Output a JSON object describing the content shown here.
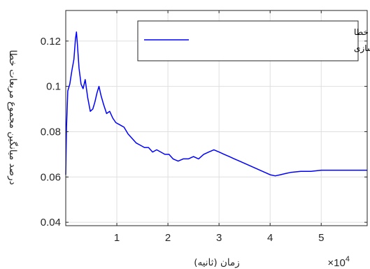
{
  "chart_data": {
    "type": "line",
    "xlabel": "زمان (ثانیه)",
    "ylabel": "درصد میانگین مجموع مربعات خطا",
    "x_multiplier": "×10",
    "x_multiplier_exponent": "4",
    "xlim": [
      0,
      59000
    ],
    "ylim": [
      0.0385,
      0.1335
    ],
    "grid": true,
    "legend_position": "top-right",
    "xticks": [
      {
        "value": 10000,
        "label": "1"
      },
      {
        "value": 20000,
        "label": "2"
      },
      {
        "value": 30000,
        "label": "3"
      },
      {
        "value": 40000,
        "label": "4"
      },
      {
        "value": 50000,
        "label": "5"
      }
    ],
    "yticks": [
      {
        "value": 0.04,
        "label": "0.04"
      },
      {
        "value": 0.06,
        "label": "0.06"
      },
      {
        "value": 0.08,
        "label": "0.08"
      },
      {
        "value": 0.1,
        "label": "0.1"
      },
      {
        "value": 0.12,
        "label": "0.12"
      }
    ],
    "series": [
      {
        "name": "درصد میانگین مربعات مجموع خطا برای مدلسازی",
        "name_lines": [
          "درصد میانگین مربعات مجموع خطا",
          "برای مدلسازی"
        ],
        "color": "#0000ff",
        "x": [
          0,
          150,
          400,
          800,
          1200,
          1600,
          1900,
          2100,
          2300,
          2600,
          3000,
          3400,
          3800,
          4300,
          4800,
          5300,
          5700,
          6100,
          6500,
          6900,
          7400,
          8000,
          8600,
          9200,
          9800,
          10600,
          11400,
          12200,
          13000,
          13800,
          14600,
          15400,
          16200,
          17000,
          17800,
          18600,
          19400,
          20200,
          21000,
          22000,
          23000,
          24000,
          25000,
          26000,
          27000,
          28000,
          29000,
          30000,
          31000,
          32000,
          33000,
          34000,
          35000,
          36000,
          37000,
          38000,
          39000,
          40000,
          41000,
          42000,
          43000,
          44000,
          46000,
          48000,
          50000,
          52000,
          54000,
          56000,
          58000,
          59000
        ],
        "y": [
          0.061,
          0.082,
          0.098,
          0.101,
          0.107,
          0.112,
          0.121,
          0.124,
          0.118,
          0.108,
          0.101,
          0.099,
          0.103,
          0.095,
          0.089,
          0.09,
          0.093,
          0.097,
          0.1,
          0.096,
          0.092,
          0.088,
          0.089,
          0.086,
          0.084,
          0.083,
          0.082,
          0.079,
          0.077,
          0.075,
          0.074,
          0.073,
          0.073,
          0.071,
          0.072,
          0.071,
          0.07,
          0.07,
          0.068,
          0.067,
          0.068,
          0.068,
          0.069,
          0.068,
          0.07,
          0.071,
          0.072,
          0.071,
          0.07,
          0.069,
          0.068,
          0.067,
          0.066,
          0.065,
          0.064,
          0.063,
          0.062,
          0.061,
          0.0605,
          0.061,
          0.0615,
          0.062,
          0.0625,
          0.0625,
          0.063,
          0.063,
          0.063,
          0.063,
          0.063,
          0.063
        ]
      }
    ]
  }
}
